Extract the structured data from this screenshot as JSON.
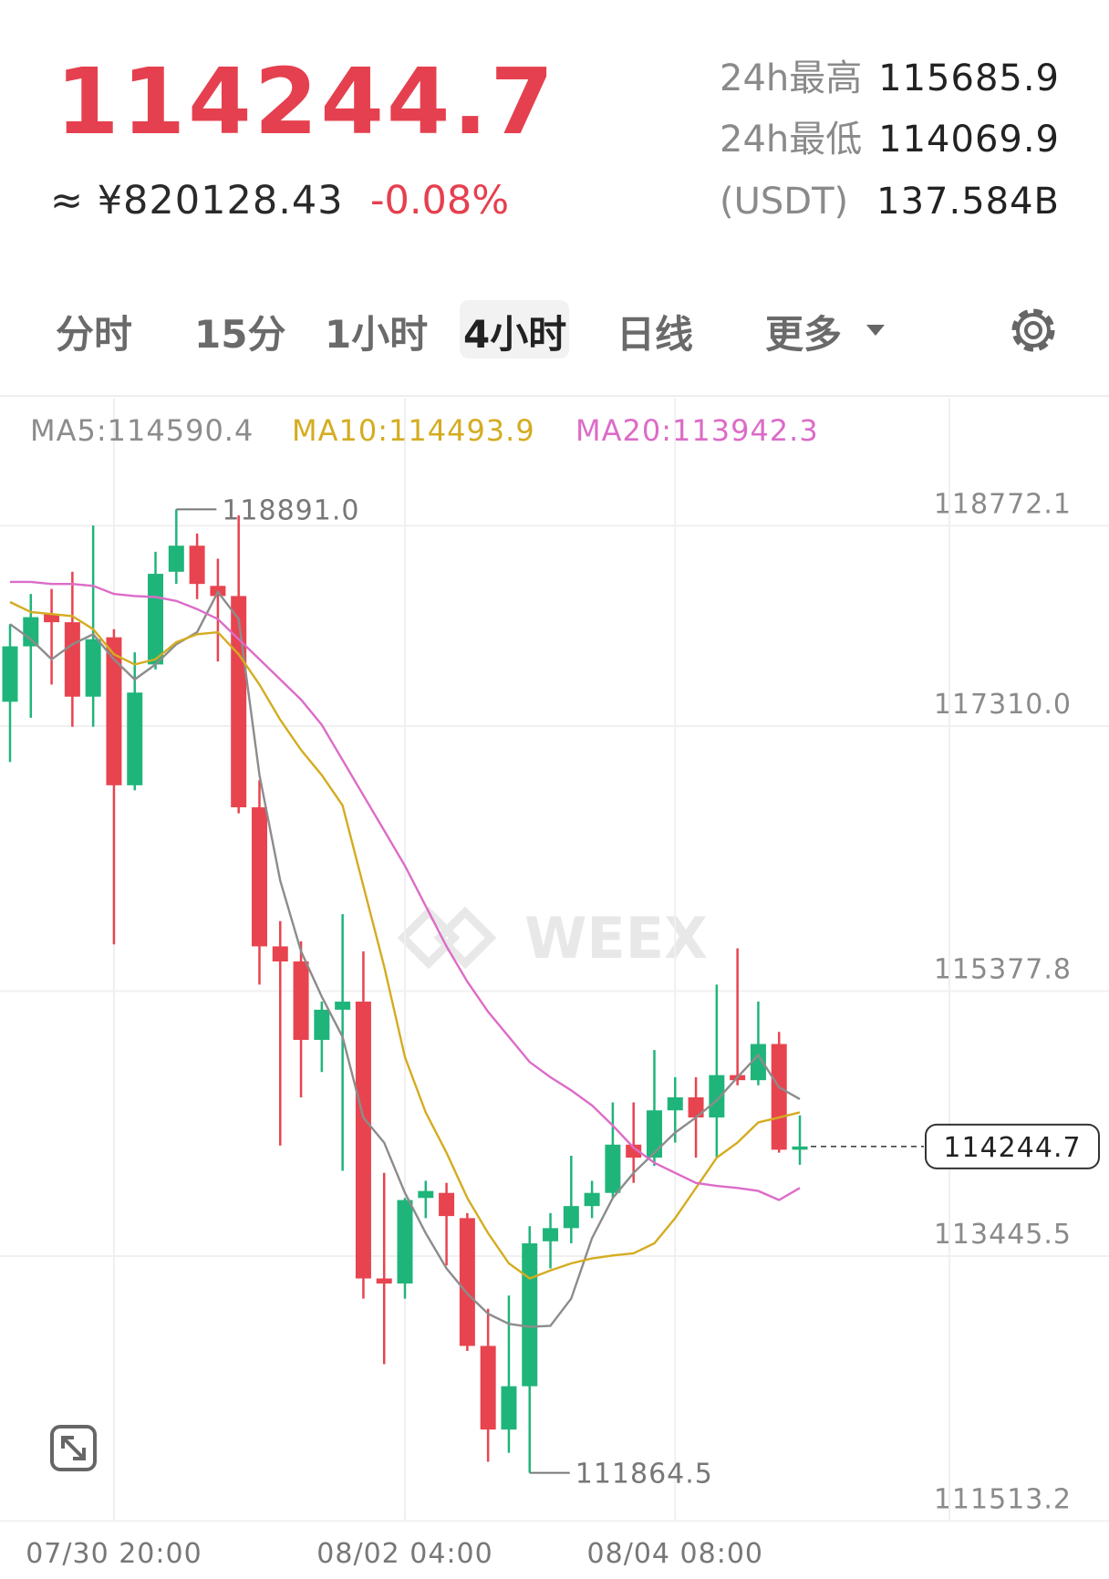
{
  "header": {
    "price": "114244.7",
    "cny": "≈ ¥820128.43",
    "change": "-0.08%",
    "stats": [
      {
        "label": "24h最高",
        "value": "115685.9"
      },
      {
        "label": "24h最低",
        "value": "114069.9"
      },
      {
        "label": "(USDT)",
        "value": "137.584B"
      }
    ]
  },
  "tabs": {
    "items": [
      "分时",
      "15分",
      "1小时",
      "4小时",
      "日线",
      "更多"
    ],
    "selected": 3
  },
  "watermark": "WEEX",
  "chart_data": {
    "type": "candlestick",
    "categories": [
      null,
      null,
      null,
      null,
      null,
      "07/30 20:00",
      null,
      null,
      null,
      null,
      null,
      null,
      null,
      null,
      null,
      null,
      null,
      null,
      null,
      "08/02 04:00",
      null,
      null,
      null,
      null,
      null,
      null,
      null,
      null,
      null,
      null,
      null,
      null,
      "08/04 08:00",
      null,
      null,
      null,
      null,
      null,
      null
    ],
    "open": [
      117488,
      117892,
      118127,
      118068,
      117525,
      117958,
      116879,
      117760,
      118436,
      118626,
      118333,
      118259,
      116718,
      115704,
      115594,
      115022,
      115242,
      115301,
      113282,
      113245,
      113869,
      113906,
      113722,
      112790,
      112180,
      112496,
      113553,
      113649,
      113810,
      113906,
      114258,
      114163,
      114508,
      114603,
      114456,
      114765,
      114728,
      114992,
      114221
    ],
    "high": [
      118054,
      118274,
      118311,
      118436,
      118773,
      118017,
      117848,
      118582,
      118891.0,
      118715,
      118531,
      118847,
      116916,
      115888,
      115741,
      115301,
      115939,
      115668,
      114052,
      113869,
      113994,
      113979,
      113759,
      113061,
      113157,
      113663,
      113759,
      114177,
      113994,
      114566,
      114566,
      114948,
      114750,
      114750,
      115425,
      115690,
      115301,
      115080,
      114471
    ],
    "low": [
      117048,
      117371,
      117613,
      117305,
      117305,
      115719,
      116842,
      117724,
      118347,
      118237,
      117782,
      116674,
      115425,
      114251,
      114603,
      114787,
      114067,
      113135,
      112657,
      113135,
      113722,
      113377,
      112753,
      111945,
      112011,
      111864.5,
      113355,
      113538,
      113722,
      113869,
      113979,
      114104,
      114273,
      114163,
      114163,
      114691,
      114691,
      114199,
      114111
    ],
    "close": [
      117892,
      118105,
      118068,
      117525,
      117944,
      116879,
      117555,
      118421,
      118626,
      118347,
      118259,
      116718,
      115704,
      115594,
      115022,
      115242,
      115301,
      113282,
      113245,
      113854,
      113920,
      113737,
      112790,
      112180,
      112496,
      113538,
      113649,
      113810,
      113906,
      114258,
      114163,
      114508,
      114603,
      114456,
      114765,
      114728,
      114992,
      114221,
      114244.7
    ],
    "up_color": "#1fb57a",
    "down_color": "#e8444f",
    "ma_series": [
      {
        "name": "MA5:114590.4",
        "color": "#8c8c8c",
        "values": [
          118054,
          117944,
          117797,
          117907,
          117980,
          117797,
          117650,
          117760,
          117907,
          117995,
          118289,
          118091,
          116953,
          116182,
          115668,
          115337,
          115044,
          114456,
          114273,
          113906,
          113612,
          113355,
          113171,
          113025,
          112951,
          112929,
          112936,
          113135,
          113575,
          113869,
          114052,
          114199,
          114346,
          114456,
          114581,
          114750,
          114911,
          114676,
          114590.4
        ]
      },
      {
        "name": "MA10:114493.9",
        "color": "#d4ac20",
        "values": [
          118215,
          118142,
          118127,
          118113,
          118017,
          117834,
          117760,
          117797,
          117922,
          117980,
          117995,
          117834,
          117613,
          117356,
          117136,
          116953,
          116732,
          116145,
          115558,
          114897,
          114493,
          114199,
          113869,
          113612,
          113392,
          113282,
          113340,
          113392,
          113428,
          113450,
          113465,
          113538,
          113722,
          113942,
          114163,
          114273,
          114420,
          114456,
          114493.9
        ]
      },
      {
        "name": "MA20:113942.3",
        "color": "#dc6cc8",
        "values": [
          118362,
          118362,
          118347,
          118347,
          118333,
          118274,
          118259,
          118252,
          118223,
          118164,
          118091,
          117944,
          117797,
          117650,
          117503,
          117320,
          117063,
          116806,
          116549,
          116292,
          115998,
          115704,
          115447,
          115227,
          115044,
          114860,
          114750,
          114654,
          114544,
          114397,
          114236,
          114126,
          114052,
          113979,
          113957,
          113942,
          113920,
          113854,
          113942.3
        ]
      }
    ],
    "ylim": [
      111513.2,
      119700
    ],
    "yticks": [
      118772.1,
      {
        "value": 117310.0,
        "label": "117310.0"
      },
      115377.8,
      113445.5,
      111513.2
    ],
    "grid": true,
    "annotations": [
      {
        "value": 118891.0,
        "label": "118891.0"
      },
      {
        "value": 111864.5,
        "label": "111864.5"
      },
      {
        "value": 114244.7,
        "label": "114244.7"
      }
    ]
  }
}
